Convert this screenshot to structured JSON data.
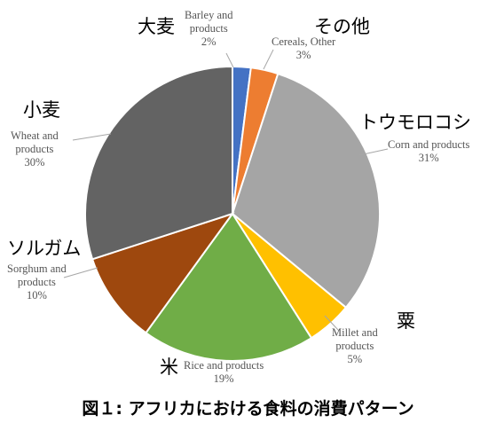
{
  "caption": "図１: アフリカにおける食料の消費パターン",
  "chart_data": {
    "type": "pie",
    "start_angle_deg": -90,
    "direction": "clockwise",
    "slices": [
      {
        "jp_label": "大麦",
        "label_lines": [
          "Barley and",
          "products"
        ],
        "percent_label": "2%",
        "value": 2,
        "color": "#4472C4"
      },
      {
        "jp_label": "その他",
        "label_lines": [
          "Cereals, Other"
        ],
        "percent_label": "3%",
        "value": 3,
        "color": "#ED7D31"
      },
      {
        "jp_label": "トウモロコシ",
        "label_lines": [
          "Corn and products"
        ],
        "percent_label": "31%",
        "value": 31,
        "color": "#A5A5A5"
      },
      {
        "jp_label": "粟",
        "label_lines": [
          "Millet and",
          "products"
        ],
        "percent_label": "5%",
        "value": 5,
        "color": "#FFC000"
      },
      {
        "jp_label": "米",
        "label_lines": [
          "Rice and products"
        ],
        "percent_label": "19%",
        "value": 19,
        "color": "#70AD47"
      },
      {
        "jp_label": "ソルガム",
        "label_lines": [
          "Sorghum  and",
          "products"
        ],
        "percent_label": "10%",
        "value": 10,
        "color": "#9E480E"
      },
      {
        "jp_label": "小麦",
        "label_lines": [
          "Wheat and",
          "products"
        ],
        "percent_label": "30%",
        "value": 30,
        "color": "#636363"
      }
    ]
  }
}
